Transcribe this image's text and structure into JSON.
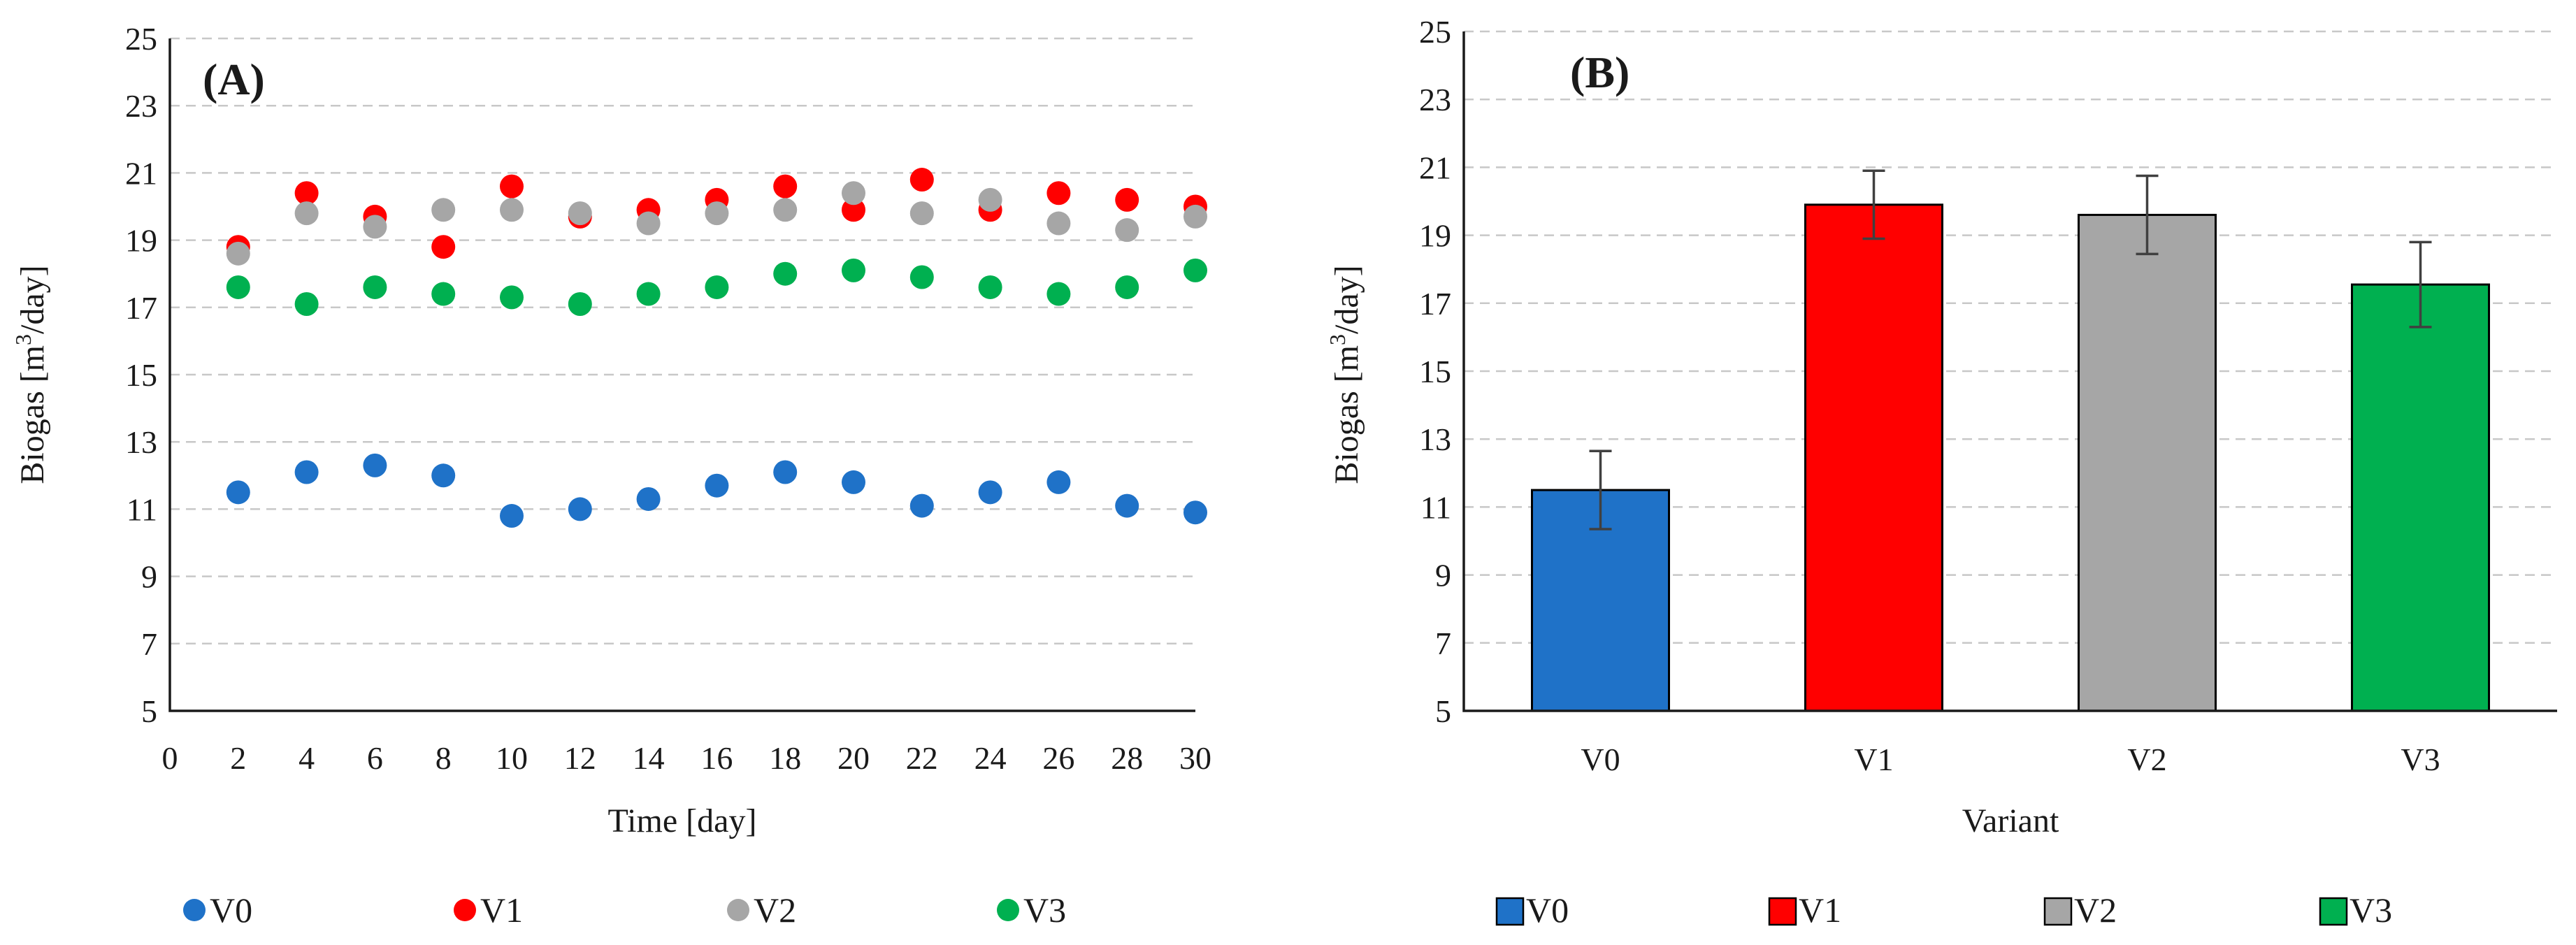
{
  "colors": {
    "V0": "#1f72c8",
    "V1": "#ff0000",
    "V2": "#a6a6a6",
    "V3": "#00b050"
  },
  "chart_data": [
    {
      "type": "scatter",
      "panel_label": "(A)",
      "xlabel": "Time [day]",
      "ylabel_prefix": "Biogas [m",
      "ylabel_sup": "3",
      "ylabel_suffix": "/day]",
      "xlim": [
        0,
        30
      ],
      "ylim": [
        5,
        25
      ],
      "xticks": [
        "0",
        "2",
        "4",
        "6",
        "8",
        "10",
        "12",
        "14",
        "16",
        "18",
        "20",
        "22",
        "24",
        "26",
        "28",
        "30"
      ],
      "yticks": [
        "5",
        "7",
        "9",
        "11",
        "13",
        "15",
        "17",
        "19",
        "21",
        "23",
        "25"
      ],
      "grid": true,
      "legend_position": "bottom",
      "x": [
        2,
        4,
        6,
        8,
        10,
        12,
        14,
        16,
        18,
        20,
        22,
        24,
        26,
        28,
        30
      ],
      "series": [
        {
          "name": "V0",
          "values": [
            11.5,
            12.1,
            12.3,
            12.0,
            10.8,
            11.0,
            11.3,
            11.7,
            12.1,
            11.8,
            11.1,
            11.5,
            11.8,
            11.1,
            10.9
          ]
        },
        {
          "name": "V1",
          "values": [
            18.8,
            20.4,
            19.7,
            18.8,
            20.6,
            19.7,
            19.9,
            20.2,
            20.6,
            19.9,
            20.8,
            19.9,
            20.4,
            20.2,
            20.0
          ]
        },
        {
          "name": "V2",
          "values": [
            18.6,
            19.8,
            19.4,
            19.9,
            19.9,
            19.8,
            19.5,
            19.8,
            19.9,
            20.4,
            19.8,
            20.2,
            19.5,
            19.3,
            19.7
          ]
        },
        {
          "name": "V3",
          "values": [
            17.6,
            17.1,
            17.6,
            17.4,
            17.3,
            17.1,
            17.4,
            17.6,
            18.0,
            18.1,
            17.9,
            17.6,
            17.4,
            17.6,
            18.1
          ]
        }
      ]
    },
    {
      "type": "bar",
      "panel_label": "(B)",
      "xlabel": "Variant",
      "ylabel_prefix": "Biogas [m",
      "ylabel_sup": "3",
      "ylabel_suffix": "/day]",
      "ylim": [
        5,
        25
      ],
      "yticks": [
        "5",
        "7",
        "9",
        "11",
        "13",
        "15",
        "17",
        "19",
        "21",
        "23",
        "25"
      ],
      "grid": true,
      "legend_position": "bottom",
      "categories": [
        "V0",
        "V1",
        "V2",
        "V3"
      ],
      "values": [
        11.5,
        19.9,
        19.6,
        17.55
      ],
      "errors": [
        1.15,
        1.0,
        1.15,
        1.25
      ]
    }
  ]
}
